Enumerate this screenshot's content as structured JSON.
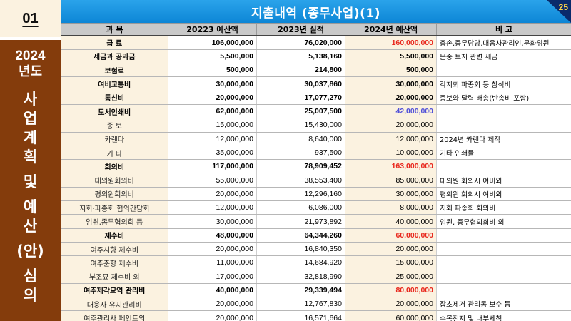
{
  "slide": {
    "number": "01",
    "page": "25"
  },
  "sidebar": {
    "year": "2024",
    "sub": "년도",
    "vertical": [
      "사",
      "업",
      "계",
      "획",
      "",
      "및",
      "",
      "예",
      "산",
      "",
      "(안)",
      "",
      "심",
      "의"
    ]
  },
  "header": {
    "title": "지출내역 (종무사업)(1)"
  },
  "table": {
    "headers": [
      "과    목",
      "20223 예산액",
      "2023년 실적",
      "2024년 예산액",
      "비         고"
    ],
    "rows": [
      {
        "type": "main",
        "cat": "급       료",
        "c1": "106,000,000",
        "c2": "76,020,000",
        "c3": "160,000,000",
        "c3color": "red",
        "note": "총손,종무담당,대웅사관리인,문화위원"
      },
      {
        "type": "main",
        "cat": "세금과 공과금",
        "c1": "5,500,000",
        "c2": "5,138,160",
        "c3": "5,500,000",
        "c3color": "",
        "note": "문중 토지 관련 세금"
      },
      {
        "type": "main",
        "cat": "보험료",
        "c1": "500,000",
        "c2": "214,800",
        "c3": "500,000",
        "c3color": "",
        "note": ""
      },
      {
        "type": "main",
        "cat": "여비교통비",
        "c1": "30,000,000",
        "c2": "30,037,860",
        "c3": "30,000,000",
        "c3color": "",
        "note": "각지회 파종회 등 참석비"
      },
      {
        "type": "main",
        "cat": "통신비",
        "c1": "20,000,000",
        "c2": "17,077,270",
        "c3": "20,000,000",
        "c3color": "",
        "note": "종보와 달력 배송(반송비 포함)"
      },
      {
        "type": "main",
        "cat": "도서인쇄비",
        "c1": "62,000,000",
        "c2": "25,007,500",
        "c3": "42,000,000",
        "c3color": "blue",
        "note": ""
      },
      {
        "type": "sub",
        "cat": "종  보",
        "c1": "15,000,000",
        "c2": "15,430,000",
        "c3": "20,000,000",
        "c3color": "",
        "note": ""
      },
      {
        "type": "sub",
        "cat": "카렌다",
        "c1": "12,000,000",
        "c2": "8,640,000",
        "c3": "12,000,000",
        "c3color": "",
        "note": "2024년 카렌다 제작"
      },
      {
        "type": "sub",
        "cat": "기  타",
        "c1": "35,000,000",
        "c2": "937,500",
        "c3": "10,000,000",
        "c3color": "",
        "note": "기타 인쇄물"
      },
      {
        "type": "main",
        "cat": "회의비",
        "c1": "117,000,000",
        "c2": "78,909,452",
        "c3": "163,000,000",
        "c3color": "red",
        "note": ""
      },
      {
        "type": "sub",
        "cat": "대의원회의비",
        "c1": "55,000,000",
        "c2": "38,553,400",
        "c3": "85,000,000",
        "c3color": "",
        "note": "대의원 회의시 여비외"
      },
      {
        "type": "sub",
        "cat": "평의원회의비",
        "c1": "20,000,000",
        "c2": "12,296,160",
        "c3": "30,000,000",
        "c3color": "",
        "note": "평의원 회의시 여비외"
      },
      {
        "type": "sub",
        "cat": "지회·파종회 협의간담회",
        "c1": "12,000,000",
        "c2": "6,086,000",
        "c3": "8,000,000",
        "c3color": "",
        "note": "지회 파종회 회의비"
      },
      {
        "type": "sub",
        "cat": "임원,종무협의회 등",
        "c1": "30,000,000",
        "c2": "21,973,892",
        "c3": "40,000,000",
        "c3color": "",
        "note": "임원, 종무협의회비 외"
      },
      {
        "type": "main",
        "cat": "제수비",
        "c1": "48,000,000",
        "c2": "64,344,260",
        "c3": "60,000,000",
        "c3color": "red",
        "note": ""
      },
      {
        "type": "sub",
        "cat": "여주시향 제수비",
        "c1": "20,000,000",
        "c2": "16,840,350",
        "c3": "20,000,000",
        "c3color": "",
        "note": ""
      },
      {
        "type": "sub",
        "cat": "여주춘향 제수비",
        "c1": "11,000,000",
        "c2": "14,684,920",
        "c3": "15,000,000",
        "c3color": "",
        "note": ""
      },
      {
        "type": "sub",
        "cat": "부조묘 제수비 외",
        "c1": "17,000,000",
        "c2": "32,818,990",
        "c3": "25,000,000",
        "c3color": "",
        "note": ""
      },
      {
        "type": "main",
        "cat": "여주제각묘역 관리비",
        "c1": "40,000,000",
        "c2": "29,339,494",
        "c3": "80,000,000",
        "c3color": "red",
        "note": ""
      },
      {
        "type": "sub",
        "cat": "대웅사 유지관리비",
        "c1": "20,000,000",
        "c2": "12,767,830",
        "c3": "20,000,000",
        "c3color": "",
        "note": "잡초제거 관리동 보수 등"
      },
      {
        "type": "sub",
        "cat": "여주관리사 페인트외",
        "c1": "20,000,000",
        "c2": "16,571,664",
        "c3": "60,000,000",
        "c3color": "",
        "note": "수목전지 및 내부세척"
      }
    ]
  },
  "colors": {
    "header_blue": "#1595e0",
    "sidebar_brown": "#843c0c",
    "cream": "#fbf2e0",
    "red": "#e8261b",
    "blue": "#5050d8",
    "page_no_yellow": "#ffd54a"
  }
}
